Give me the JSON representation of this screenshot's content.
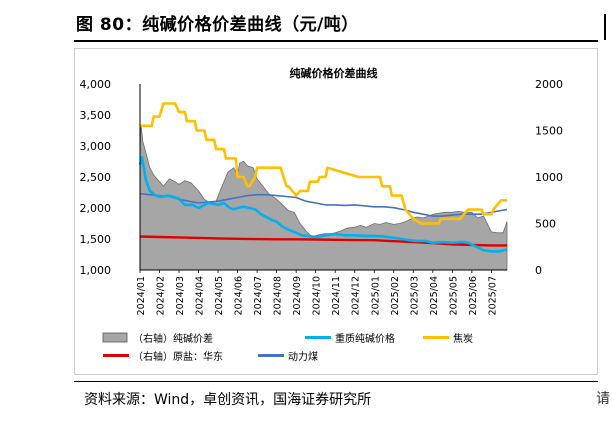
{
  "figure": {
    "title": "图 80：纯碱价格价差曲线（元/吨）",
    "source": "资料来源：Wind，卓创资讯，国海证券研究所",
    "edge_mark": "请"
  },
  "chart_data": {
    "type": "area",
    "title": "纯碱价格价差曲线",
    "x": [
      "2024/01",
      "2024/02",
      "2024/03",
      "2024/04",
      "2024/05",
      "2024/06",
      "2024/07",
      "2024/08",
      "2024/09",
      "2024/10",
      "2024/11",
      "2024/12",
      "2025/01",
      "2025/02",
      "2025/03",
      "2025/04",
      "2025/05",
      "2025/06",
      "2025/07"
    ],
    "y_left": {
      "ticks": [
        "1,000",
        "1,500",
        "2,000",
        "2,500",
        "3,000",
        "3,500",
        "4,000"
      ],
      "range": [
        1000,
        4000
      ]
    },
    "y_right": {
      "ticks": [
        "0",
        "500",
        "1000",
        "1500",
        "2000"
      ],
      "range": [
        0,
        2000
      ]
    },
    "series": [
      {
        "name": "（右轴）纯碱价差",
        "axis": "right",
        "type": "area",
        "color": "#a6a6a6",
        "x": [
          0,
          0.05,
          0.15,
          0.3,
          0.5,
          0.7,
          1.0,
          1.2,
          1.5,
          1.8,
          2.0,
          2.3,
          2.6,
          3.0,
          3.3,
          3.6,
          3.9,
          4.2,
          4.5,
          4.8,
          5.0,
          5.1,
          5.3,
          5.5,
          5.8,
          6.0,
          6.3,
          6.6,
          7.0,
          7.3,
          7.6,
          7.9,
          8.2,
          8.5,
          8.8,
          9.0,
          9.2,
          9.5,
          9.8,
          10.0,
          10.3,
          10.6,
          11.0,
          11.3,
          11.6,
          12.0,
          12.3,
          12.6,
          13.0,
          13.3,
          13.6,
          14.0,
          14.2,
          14.5,
          14.8,
          15.0,
          15.3,
          15.6,
          16.0,
          16.3,
          16.6,
          17.0,
          17.3,
          17.6,
          18.0,
          18.3,
          18.6,
          18.8
        ],
        "values": [
          1300,
          1560,
          1380,
          1260,
          1100,
          1020,
          950,
          900,
          980,
          950,
          920,
          960,
          940,
          850,
          760,
          720,
          740,
          900,
          1050,
          1100,
          1020,
          1150,
          1170,
          1120,
          1100,
          980,
          900,
          820,
          760,
          700,
          640,
          620,
          500,
          420,
          360,
          370,
          380,
          390,
          390,
          400,
          420,
          450,
          460,
          480,
          460,
          500,
          490,
          510,
          490,
          500,
          520,
          560,
          570,
          560,
          580,
          600,
          610,
          620,
          620,
          630,
          620,
          620,
          560,
          580,
          410,
          400,
          400,
          520
        ]
      },
      {
        "name": "重质纯碱价格",
        "axis": "left",
        "type": "line",
        "color": "#00b0f0",
        "x": [
          0,
          0.1,
          0.3,
          0.5,
          0.8,
          1.0,
          1.5,
          2.0,
          2.3,
          2.7,
          3.0,
          3.5,
          4.0,
          4.3,
          4.6,
          4.8,
          5.0,
          5.3,
          5.6,
          5.9,
          6.2,
          6.5,
          6.8,
          7.0,
          7.3,
          7.6,
          8.0,
          8.3,
          8.6,
          9.0,
          9.2,
          9.5,
          10.0,
          10.5,
          11.0,
          11.5,
          12.0,
          12.5,
          13.0,
          13.4,
          13.8,
          14.2,
          14.6,
          15.0,
          15.5,
          16.0,
          16.5,
          16.8,
          17.2,
          17.6,
          18.0,
          18.4,
          18.8
        ],
        "values": [
          2700,
          2820,
          2450,
          2280,
          2200,
          2180,
          2200,
          2150,
          2050,
          2050,
          2000,
          2080,
          2050,
          2080,
          2000,
          1980,
          2000,
          2020,
          2000,
          1980,
          1900,
          1850,
          1800,
          1780,
          1700,
          1650,
          1600,
          1560,
          1550,
          1530,
          1540,
          1560,
          1580,
          1560,
          1560,
          1550,
          1550,
          1540,
          1520,
          1500,
          1480,
          1470,
          1470,
          1440,
          1450,
          1440,
          1450,
          1440,
          1380,
          1320,
          1300,
          1300,
          1330
        ]
      },
      {
        "name": "焦炭",
        "axis": "right",
        "type": "line",
        "color": "#ffc000",
        "x": [
          0,
          0.6,
          0.7,
          1.0,
          1.2,
          1.8,
          2.0,
          2.3,
          2.4,
          2.8,
          2.9,
          3.3,
          3.4,
          3.8,
          3.9,
          4.3,
          4.4,
          4.9,
          5.0,
          5.3,
          5.5,
          5.6,
          5.9,
          6.0,
          7.2,
          7.5,
          7.6,
          8.0,
          8.2,
          8.6,
          8.7,
          9.1,
          9.2,
          9.5,
          9.6,
          11.2,
          11.6,
          12.0,
          12.1,
          12.3,
          12.4,
          12.8,
          12.9,
          13.4,
          13.6,
          14.0,
          14.4,
          14.5,
          14.8,
          15.3,
          15.4,
          16.0,
          16.4,
          16.8,
          17.5,
          17.6,
          18.0,
          18.1,
          18.5,
          18.8
        ],
        "values": [
          1550,
          1550,
          1650,
          1650,
          1790,
          1790,
          1700,
          1700,
          1600,
          1600,
          1500,
          1500,
          1400,
          1400,
          1300,
          1300,
          1200,
          1200,
          1000,
          1000,
          900,
          900,
          1000,
          1100,
          1100,
          900,
          900,
          800,
          850,
          850,
          950,
          950,
          1000,
          1000,
          1100,
          1000,
          1000,
          1000,
          1000,
          1000,
          900,
          900,
          800,
          800,
          650,
          550,
          500,
          500,
          500,
          500,
          550,
          550,
          550,
          650,
          650,
          600,
          600,
          650,
          750,
          750
        ]
      },
      {
        "name": "（右轴）原盐：华东",
        "axis": "right",
        "type": "line",
        "color": "#e00000",
        "x": [
          0,
          1,
          2,
          3,
          4,
          5,
          6,
          7,
          8,
          9,
          10,
          11,
          12,
          13,
          14,
          15,
          16,
          17,
          18,
          18.8
        ],
        "values": [
          360,
          355,
          350,
          345,
          340,
          335,
          332,
          330,
          330,
          328,
          325,
          322,
          320,
          310,
          300,
          290,
          275,
          270,
          265,
          265
        ]
      },
      {
        "name": "动力煤",
        "axis": "right",
        "type": "line",
        "color": "#4472c4",
        "x": [
          0,
          0.5,
          1,
          1.5,
          2,
          2.5,
          3,
          3.5,
          4,
          4.5,
          5,
          5.5,
          6,
          6.5,
          7,
          7.5,
          8,
          8.5,
          9,
          9.5,
          10,
          10.5,
          11,
          11.5,
          12,
          12.5,
          13,
          13.5,
          14,
          14.5,
          15,
          15.5,
          16,
          16.5,
          17,
          17.5,
          18,
          18.5,
          18.8
        ],
        "values": [
          820,
          810,
          800,
          790,
          760,
          740,
          720,
          730,
          740,
          760,
          780,
          800,
          810,
          810,
          800,
          790,
          780,
          740,
          720,
          700,
          700,
          695,
          700,
          690,
          680,
          680,
          670,
          650,
          620,
          600,
          580,
          580,
          590,
          600,
          600,
          600,
          620,
          640,
          650
        ]
      }
    ],
    "legend": {
      "placement": "bottom",
      "columns": 3
    }
  }
}
